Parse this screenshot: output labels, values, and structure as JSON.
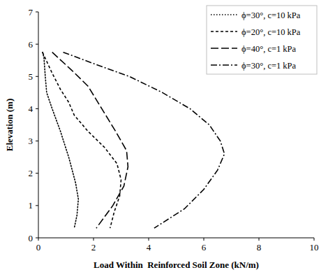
{
  "chart_data": {
    "type": "line",
    "x_label": "Load Within  Reinforced Soil Zone (kN/m)",
    "y_label": "Elevation (m)",
    "xlim": [
      0,
      10
    ],
    "xticks": [
      0,
      2,
      4,
      6,
      8,
      10
    ],
    "ylim": [
      0,
      7
    ],
    "yticks": [
      0,
      1,
      2,
      3,
      4,
      5,
      6,
      7
    ],
    "grid": false,
    "legend": "top-right",
    "series": [
      {
        "name": "ϕ=30°, c=10 kPa",
        "color": "#000000",
        "line_style": "dotted",
        "x": [
          0.15,
          0.2,
          0.25,
          0.3,
          0.5,
          0.8,
          1.1,
          1.35,
          1.45,
          1.4,
          1.3
        ],
        "values": [
          5.75,
          5.6,
          5.0,
          4.5,
          4.0,
          3.3,
          2.5,
          1.7,
          1.2,
          0.7,
          0.3
        ]
      },
      {
        "name": "ϕ=20°, c=10 kPa",
        "color": "#000000",
        "line_style": "dashed",
        "x": [
          0.15,
          0.5,
          0.8,
          1.1,
          1.3,
          1.8,
          2.4,
          2.85,
          3.0,
          2.95,
          2.75,
          2.6
        ],
        "values": [
          5.75,
          5.1,
          4.6,
          4.2,
          3.8,
          3.3,
          2.8,
          2.3,
          1.8,
          1.3,
          0.8,
          0.3
        ]
      },
      {
        "name": "ϕ=40°, c=1 kPa",
        "color": "#000000",
        "line_style": "long-dashed",
        "x": [
          0.5,
          1.2,
          1.8,
          2.3,
          2.8,
          3.2,
          3.25,
          3.1,
          2.7,
          2.1
        ],
        "values": [
          5.75,
          5.2,
          4.7,
          4.0,
          3.3,
          2.7,
          2.2,
          1.6,
          1.0,
          0.3
        ]
      },
      {
        "name": "ϕ=30°, c=1 kPa",
        "color": "#000000",
        "line_style": "dash-dot",
        "x": [
          0.9,
          2.0,
          3.3,
          4.5,
          5.5,
          6.2,
          6.6,
          6.75,
          6.5,
          6.0,
          5.3,
          4.2
        ],
        "values": [
          5.75,
          5.4,
          5.0,
          4.5,
          4.0,
          3.5,
          3.0,
          2.6,
          2.1,
          1.5,
          0.9,
          0.3
        ]
      }
    ]
  }
}
